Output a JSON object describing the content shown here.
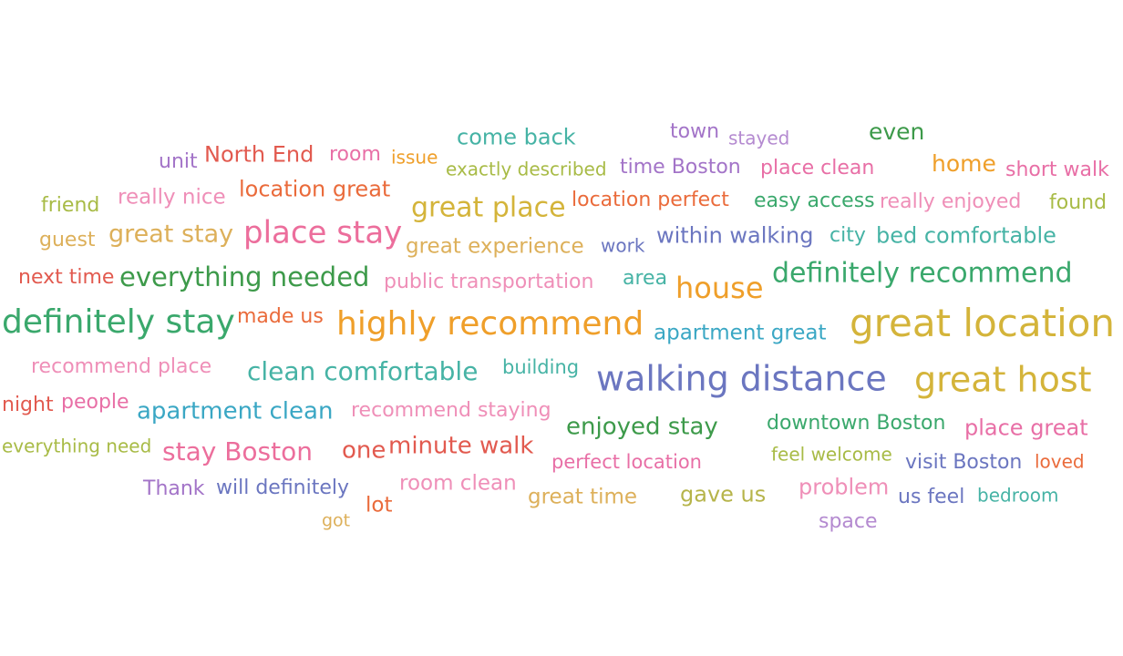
{
  "chart_data": {
    "type": "word_cloud",
    "palette": {
      "gold": "#d4b43a",
      "orange": "#ef9f2a",
      "blue_indigo": "#6b76c0",
      "green": "#3aa86c",
      "dark_green": "#3d9a4a",
      "lime": "#a8bb46",
      "teal": "#46b3a5",
      "cyan": "#3aa7c4",
      "pink": "#ec6e9c",
      "light_pink": "#ef8fb8",
      "magenta": "#e86fa6",
      "red": "#e25a4f",
      "red_orange": "#ea6b3b",
      "purple": "#a374c8",
      "light_purple": "#b48ad0",
      "olive": "#b6b44a",
      "mustard": "#ddb05a"
    },
    "words": [
      {
        "text": "great location",
        "weight": 42,
        "color": "#d4b43a"
      },
      {
        "text": "walking distance",
        "weight": 38,
        "color": "#6b76c0"
      },
      {
        "text": "great host",
        "weight": 38,
        "color": "#d4b43a"
      },
      {
        "text": "highly recommend",
        "weight": 36,
        "color": "#ef9f2a"
      },
      {
        "text": "definitely stay",
        "weight": 36,
        "color": "#3aa86c"
      },
      {
        "text": "place stay",
        "weight": 34,
        "color": "#ec6e9c"
      },
      {
        "text": "house",
        "weight": 32,
        "color": "#ef9f2a"
      },
      {
        "text": "definitely recommend",
        "weight": 30,
        "color": "#3aa86c"
      },
      {
        "text": "great place",
        "weight": 30,
        "color": "#d4b43a"
      },
      {
        "text": "everything needed",
        "weight": 29,
        "color": "#3d9a4a"
      },
      {
        "text": "clean comfortable",
        "weight": 28,
        "color": "#46b3a5"
      },
      {
        "text": "stay Boston",
        "weight": 28,
        "color": "#ec6e9c"
      },
      {
        "text": "great stay",
        "weight": 27,
        "color": "#ddb05a"
      },
      {
        "text": "enjoyed stay",
        "weight": 26,
        "color": "#3d9a4a"
      },
      {
        "text": "apartment clean",
        "weight": 26,
        "color": "#3aa7c4"
      },
      {
        "text": "minute walk",
        "weight": 26,
        "color": "#e25a4f"
      },
      {
        "text": "one",
        "weight": 26,
        "color": "#e25a4f"
      },
      {
        "text": "home",
        "weight": 25,
        "color": "#ef9f2a"
      },
      {
        "text": "even",
        "weight": 25,
        "color": "#3d9a4a"
      },
      {
        "text": "location great",
        "weight": 24,
        "color": "#ea6b3b"
      },
      {
        "text": "gave us",
        "weight": 24,
        "color": "#b6b44a"
      },
      {
        "text": "within walking",
        "weight": 24,
        "color": "#6b76c0"
      },
      {
        "text": "problem",
        "weight": 24,
        "color": "#ef8fb8"
      },
      {
        "text": "come back",
        "weight": 24,
        "color": "#46b3a5"
      },
      {
        "text": "North End",
        "weight": 24,
        "color": "#e25a4f"
      },
      {
        "text": "bed comfortable",
        "weight": 24,
        "color": "#46b3a5"
      },
      {
        "text": "place great",
        "weight": 24,
        "color": "#e86fa6"
      },
      {
        "text": "great time",
        "weight": 23,
        "color": "#ddb05a"
      },
      {
        "text": "room clean",
        "weight": 23,
        "color": "#ef8fb8"
      },
      {
        "text": "great experience",
        "weight": 23,
        "color": "#ddb05a"
      },
      {
        "text": "apartment great",
        "weight": 23,
        "color": "#3aa7c4"
      },
      {
        "text": "really nice",
        "weight": 23,
        "color": "#ef8fb8"
      },
      {
        "text": "lot",
        "weight": 23,
        "color": "#ea6b3b"
      },
      {
        "text": "visit Boston",
        "weight": 22,
        "color": "#6b76c0"
      },
      {
        "text": "us feel",
        "weight": 22,
        "color": "#6b76c0"
      },
      {
        "text": "time Boston",
        "weight": 22,
        "color": "#a374c8"
      },
      {
        "text": "downtown Boston",
        "weight": 22,
        "color": "#3aa86c"
      },
      {
        "text": "area",
        "weight": 22,
        "color": "#46b3a5"
      },
      {
        "text": "location perfect",
        "weight": 22,
        "color": "#ea6b3b"
      },
      {
        "text": "public transportation",
        "weight": 22,
        "color": "#ef8fb8"
      },
      {
        "text": "recommend place",
        "weight": 22,
        "color": "#ef8fb8"
      },
      {
        "text": "recommend staying",
        "weight": 22,
        "color": "#ef8fb8"
      },
      {
        "text": "will definitely",
        "weight": 22,
        "color": "#6b76c0"
      },
      {
        "text": "made us",
        "weight": 22,
        "color": "#ea6b3b"
      },
      {
        "text": "town",
        "weight": 22,
        "color": "#a374c8"
      },
      {
        "text": "place clean",
        "weight": 22,
        "color": "#e86fa6"
      },
      {
        "text": "short walk",
        "weight": 22,
        "color": "#e86fa6"
      },
      {
        "text": "really enjoyed",
        "weight": 22,
        "color": "#ef8fb8"
      },
      {
        "text": "found",
        "weight": 22,
        "color": "#a8bb46"
      },
      {
        "text": "easy access",
        "weight": 22,
        "color": "#3aa86c"
      },
      {
        "text": "city",
        "weight": 22,
        "color": "#46b3a5"
      },
      {
        "text": "night",
        "weight": 22,
        "color": "#e25a4f"
      },
      {
        "text": "people",
        "weight": 22,
        "color": "#e86fa6"
      },
      {
        "text": "room",
        "weight": 22,
        "color": "#e86fa6"
      },
      {
        "text": "guest",
        "weight": 22,
        "color": "#ddb05a"
      },
      {
        "text": "space",
        "weight": 22,
        "color": "#b48ad0"
      },
      {
        "text": "friend",
        "weight": 22,
        "color": "#a8bb46"
      },
      {
        "text": "next time",
        "weight": 22,
        "color": "#e25a4f"
      },
      {
        "text": "unit",
        "weight": 22,
        "color": "#a374c8"
      },
      {
        "text": "Thank",
        "weight": 22,
        "color": "#a374c8"
      },
      {
        "text": "perfect location",
        "weight": 21,
        "color": "#e86fa6"
      },
      {
        "text": "building",
        "weight": 21,
        "color": "#46b3a5"
      },
      {
        "text": "stayed",
        "weight": 20,
        "color": "#b48ad0"
      },
      {
        "text": "issue",
        "weight": 20,
        "color": "#ef9f2a"
      },
      {
        "text": "exactly described",
        "weight": 20,
        "color": "#a8bb46"
      },
      {
        "text": "loved",
        "weight": 20,
        "color": "#ea6b3b"
      },
      {
        "text": "work",
        "weight": 20,
        "color": "#6b76c0"
      },
      {
        "text": "feel welcome",
        "weight": 20,
        "color": "#a8bb46"
      },
      {
        "text": "bedroom",
        "weight": 20,
        "color": "#46b3a5"
      },
      {
        "text": "everything need",
        "weight": 20,
        "color": "#a8bb46"
      },
      {
        "text": "got",
        "weight": 19,
        "color": "#ddb05a"
      }
    ]
  }
}
